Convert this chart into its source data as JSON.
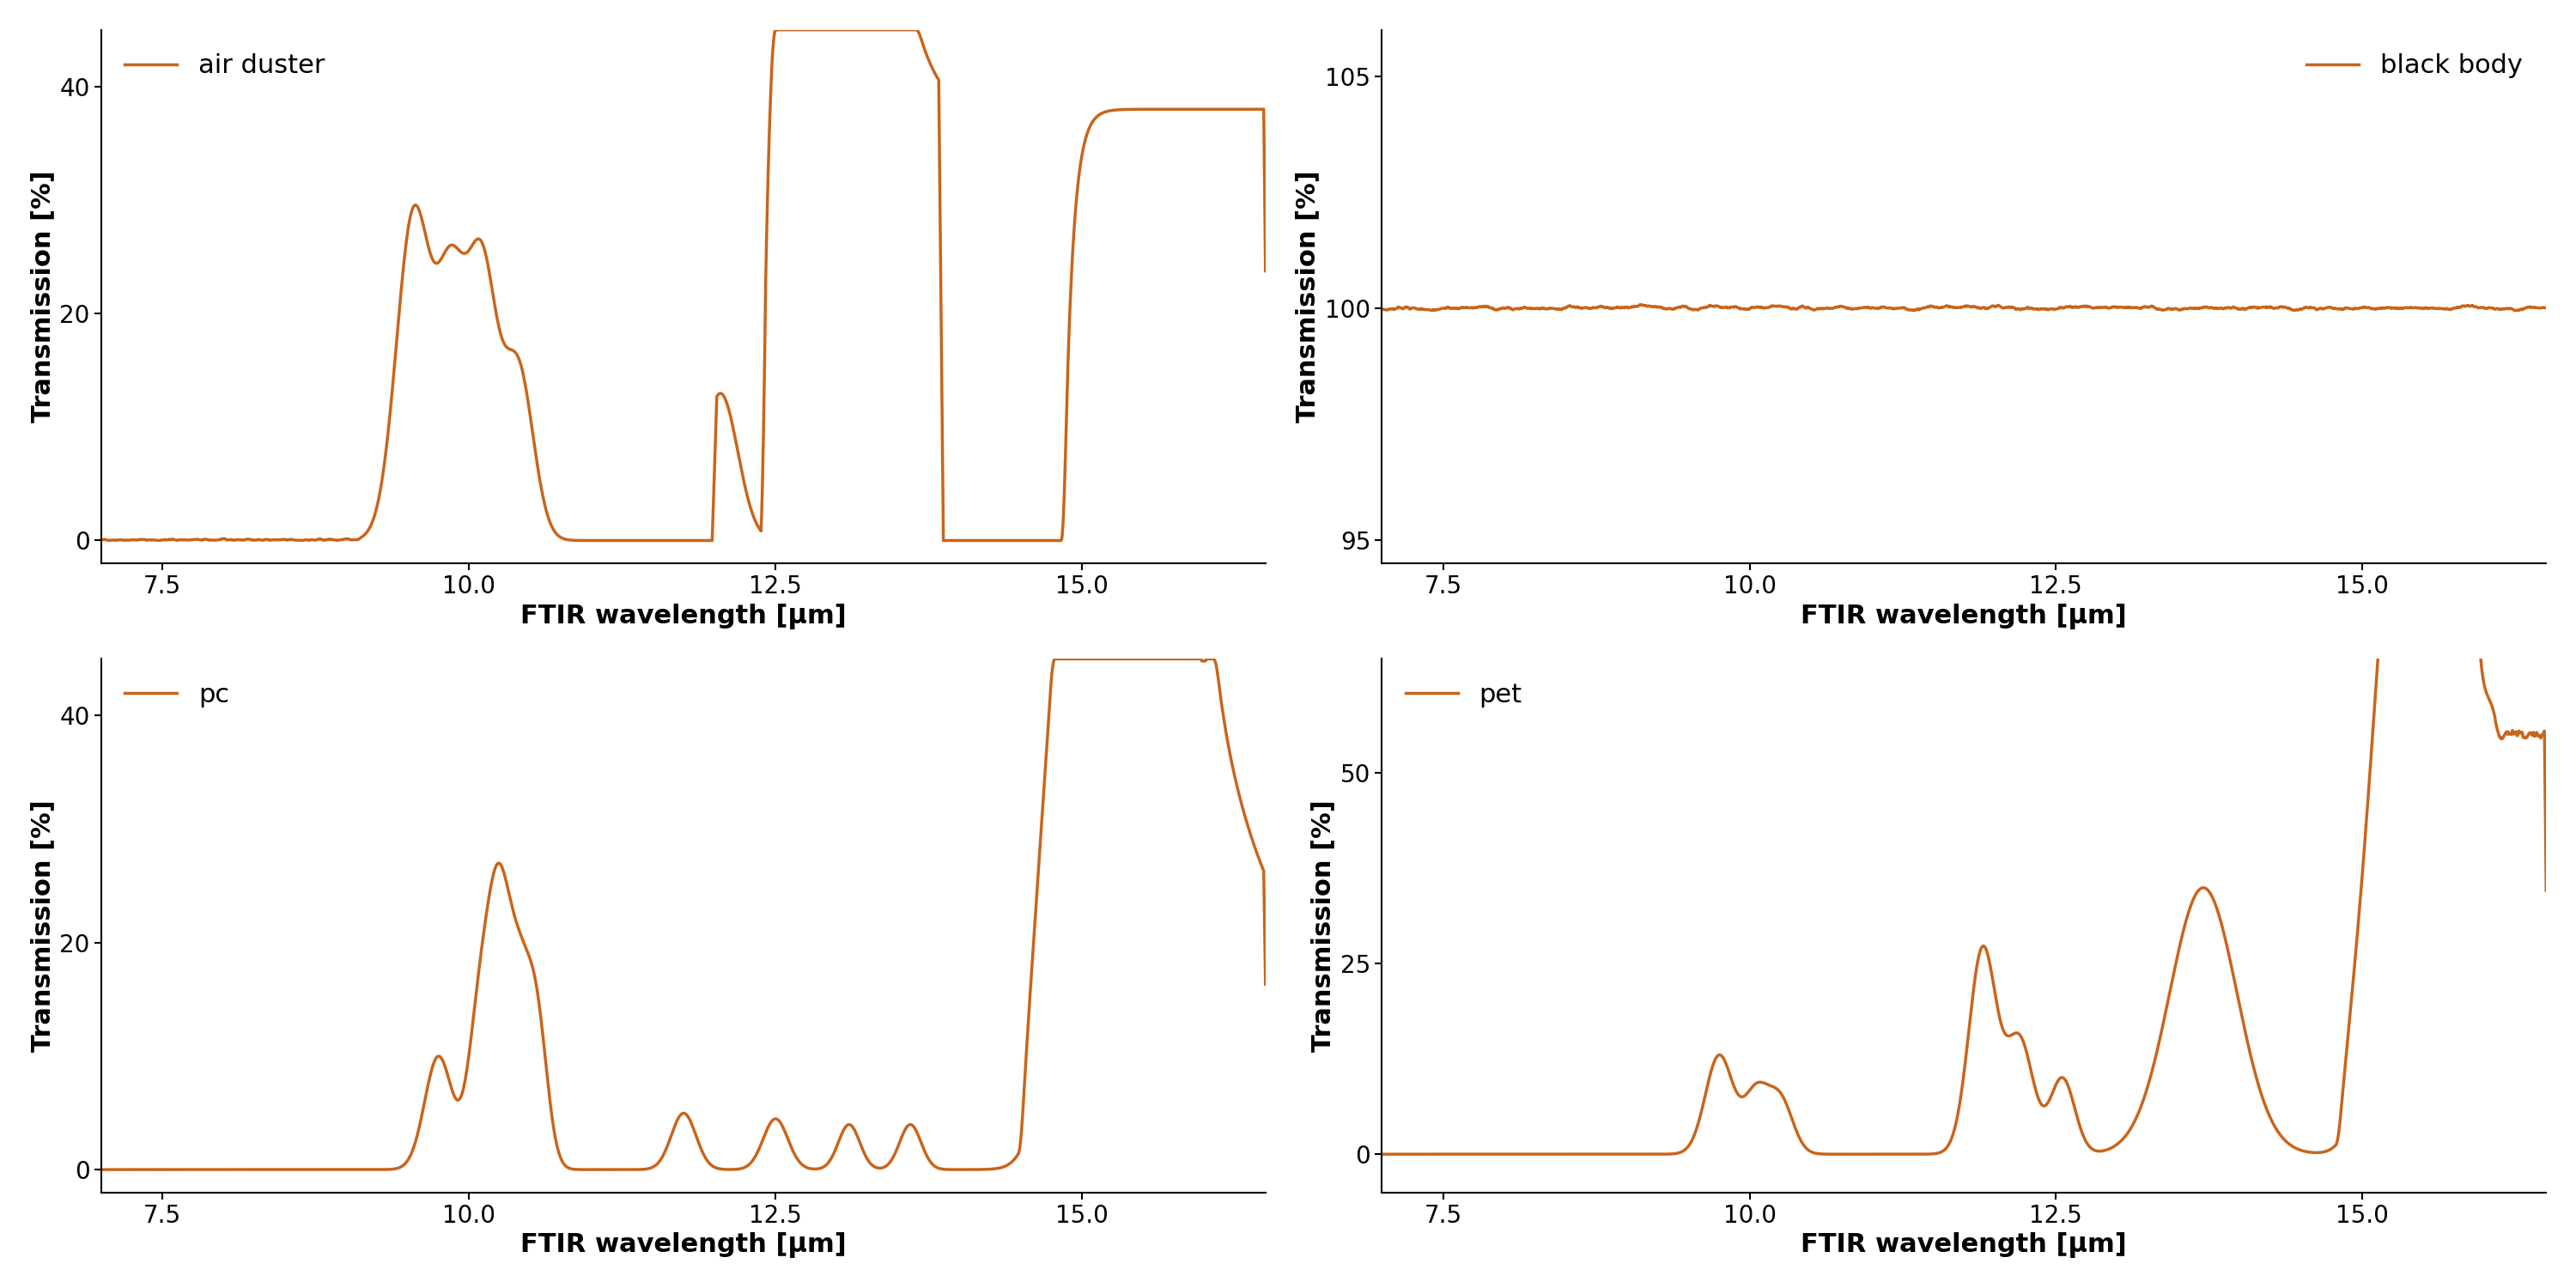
{
  "line_color": "#C8651B",
  "line_width": 2.5,
  "background_color": "#ffffff",
  "xlabel": "FTIR wavelength [μm]",
  "ylabel": "Transmission [%]",
  "xlabel_fontsize": 22,
  "ylabel_fontsize": 22,
  "tick_fontsize": 20,
  "legend_fontsize": 22,
  "xlim": [
    7.0,
    16.5
  ],
  "xticks": [
    7.5,
    10.0,
    12.5,
    15.0
  ],
  "subplots": [
    {
      "label": "air duster",
      "ylim": [
        -2,
        45
      ],
      "yticks": [
        0,
        20,
        40
      ]
    },
    {
      "label": "black body",
      "ylim": [
        94.5,
        106
      ],
      "yticks": [
        95,
        100,
        105
      ]
    },
    {
      "label": "pc",
      "ylim": [
        -2,
        45
      ],
      "yticks": [
        0,
        20,
        40
      ]
    },
    {
      "label": "pet",
      "ylim": [
        -5,
        65
      ],
      "yticks": [
        0,
        25,
        50
      ]
    }
  ]
}
